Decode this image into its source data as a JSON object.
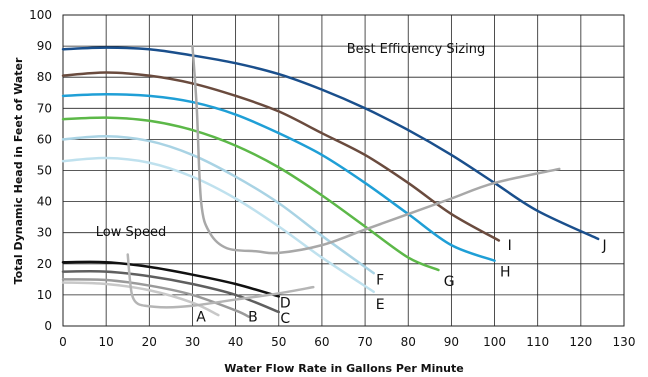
{
  "chart_data": {
    "type": "line",
    "xlabel": "Water Flow Rate in Gallons Per Minute",
    "ylabel": "Total Dynamic Head in Feet of Water",
    "xlim": [
      0,
      130
    ],
    "ylim": [
      0,
      100
    ],
    "x_ticks": [
      "0",
      "10",
      "20",
      "30",
      "40",
      "50",
      "60",
      "70",
      "80",
      "90",
      "100",
      "110",
      "120",
      "130"
    ],
    "y_ticks": [
      "0",
      "10",
      "20",
      "30",
      "40",
      "50",
      "60",
      "70",
      "80",
      "90",
      "100"
    ],
    "grid": true,
    "annotations": [
      "Best Efficiency Sizing",
      "Low Speed"
    ],
    "series": [
      {
        "name": "A",
        "color": "#c8c8c8",
        "x": [
          0,
          10,
          20,
          30,
          36
        ],
        "y": [
          14,
          13.5,
          11.5,
          7.5,
          3.5
        ]
      },
      {
        "name": "B",
        "color": "#9a9a9a",
        "x": [
          0,
          10,
          20,
          30,
          40,
          43
        ],
        "y": [
          15,
          14.8,
          13,
          10,
          5,
          3
        ]
      },
      {
        "name": "C",
        "color": "#5f5f5f",
        "x": [
          0,
          10,
          20,
          30,
          40,
          50
        ],
        "y": [
          17.5,
          17.5,
          16,
          13.5,
          10,
          4.5
        ]
      },
      {
        "name": "D",
        "color": "#111111",
        "x": [
          0,
          10,
          20,
          30,
          40,
          50
        ],
        "y": [
          20.5,
          20.5,
          19,
          16.5,
          13.5,
          9.5
        ]
      },
      {
        "name": "E",
        "color": "#bfe1ee",
        "x": [
          0,
          10,
          20,
          30,
          40,
          50,
          60,
          72
        ],
        "y": [
          53,
          54,
          52.5,
          48,
          41,
          32,
          22,
          11
        ]
      },
      {
        "name": "F",
        "color": "#a9d3e4",
        "x": [
          0,
          10,
          20,
          30,
          40,
          50,
          60,
          72
        ],
        "y": [
          60,
          61,
          59.5,
          55,
          48,
          39.5,
          29,
          17
        ]
      },
      {
        "name": "G",
        "color": "#5cb848",
        "x": [
          0,
          10,
          20,
          30,
          40,
          50,
          60,
          70,
          80,
          87
        ],
        "y": [
          66.5,
          67,
          66,
          63,
          58,
          51,
          42,
          32,
          22,
          18
        ]
      },
      {
        "name": "H",
        "color": "#1f9fd6",
        "x": [
          0,
          10,
          20,
          30,
          40,
          50,
          60,
          70,
          80,
          90,
          100
        ],
        "y": [
          74,
          74.5,
          74,
          72,
          68,
          62,
          55,
          46,
          36,
          26,
          21
        ]
      },
      {
        "name": "I",
        "color": "#6a4b3e",
        "x": [
          0,
          10,
          20,
          30,
          40,
          50,
          60,
          70,
          80,
          90,
          101
        ],
        "y": [
          80.5,
          81.5,
          80.5,
          78,
          74,
          69,
          62,
          55,
          46,
          36,
          27.5
        ]
      },
      {
        "name": "J",
        "color": "#1a4f8c",
        "x": [
          0,
          10,
          20,
          30,
          40,
          50,
          60,
          70,
          80,
          90,
          100,
          110,
          124
        ],
        "y": [
          89,
          89.5,
          89,
          87,
          84.5,
          81,
          76,
          70,
          63,
          55,
          46,
          37,
          28
        ]
      },
      {
        "name": "",
        "color": "#a8a8a8",
        "x": [
          30,
          31,
          32,
          34,
          38,
          45,
          50,
          60,
          70,
          80,
          90,
          100,
          115
        ],
        "y": [
          90,
          70,
          40,
          30,
          25,
          24,
          23.5,
          26,
          31,
          36,
          41,
          46,
          50.5
        ]
      },
      {
        "name": "",
        "color": "#b5b5b5",
        "x": [
          15,
          15.5,
          16,
          17,
          19,
          24,
          30,
          40,
          50,
          58
        ],
        "y": [
          23,
          15,
          10,
          7.5,
          6.5,
          6,
          6.5,
          8.5,
          10.5,
          12.5
        ]
      }
    ],
    "curve_labels": [
      {
        "text": "A",
        "x": 32,
        "y": 3
      },
      {
        "text": "B",
        "x": 44,
        "y": 3
      },
      {
        "text": "C",
        "x": 51.5,
        "y": 2.5
      },
      {
        "text": "D",
        "x": 51.5,
        "y": 7.5
      },
      {
        "text": "E",
        "x": 73.5,
        "y": 7
      },
      {
        "text": "F",
        "x": 73.5,
        "y": 15
      },
      {
        "text": "G",
        "x": 89.5,
        "y": 14.5
      },
      {
        "text": "H",
        "x": 102.5,
        "y": 17.5
      },
      {
        "text": "I",
        "x": 103.5,
        "y": 26
      },
      {
        "text": "J",
        "x": 125.5,
        "y": 26
      }
    ]
  }
}
